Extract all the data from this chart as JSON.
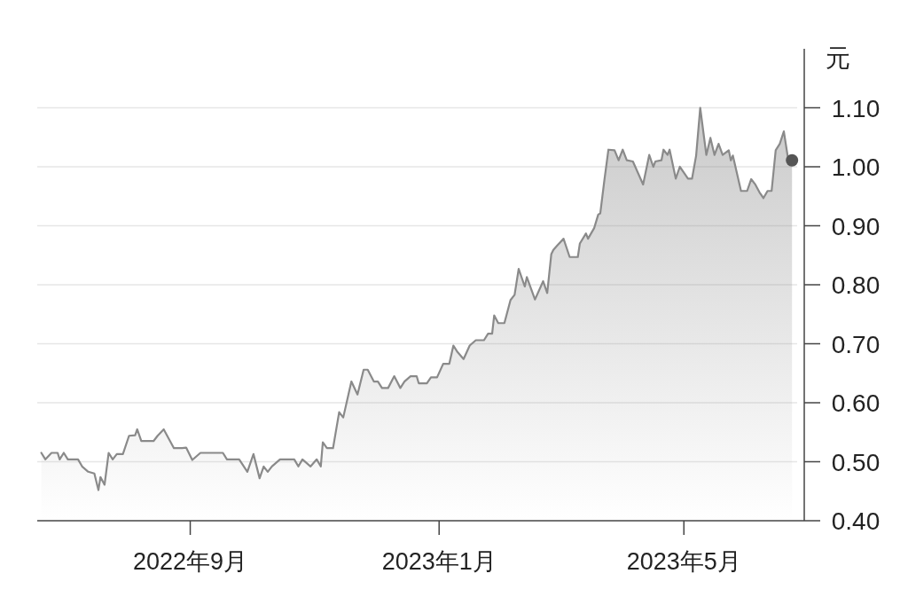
{
  "chart_data": {
    "type": "area",
    "ylabel": "元",
    "xlim": [
      "2022-06-18",
      "2023-06-29"
    ],
    "ylim": [
      0.4,
      1.2
    ],
    "xticks": [
      {
        "value": "2022-09-01",
        "label": "2022年9月"
      },
      {
        "value": "2023-01-01",
        "label": "2023年1月"
      },
      {
        "value": "2023-05-01",
        "label": "2023年5月"
      }
    ],
    "yticks": [
      {
        "value": 0.4,
        "label": "0.40"
      },
      {
        "value": 0.5,
        "label": "0.50"
      },
      {
        "value": 0.6,
        "label": "0.60"
      },
      {
        "value": 0.7,
        "label": "0.70"
      },
      {
        "value": 0.8,
        "label": "0.80"
      },
      {
        "value": 0.9,
        "label": "0.90"
      },
      {
        "value": 1.0,
        "label": "1.00"
      },
      {
        "value": 1.1,
        "label": "1.10"
      }
    ],
    "grid": "y",
    "series": [
      {
        "color": "#8a8a8a",
        "x": [
          "2022-06-20",
          "2022-06-22",
          "2022-06-25",
          "2022-06-28",
          "2022-06-29",
          "2022-07-01",
          "2022-07-03",
          "2022-07-08",
          "2022-07-10",
          "2022-07-13",
          "2022-07-16",
          "2022-07-18",
          "2022-07-19",
          "2022-07-21",
          "2022-07-23",
          "2022-07-25",
          "2022-07-27",
          "2022-07-30",
          "2022-08-02",
          "2022-08-05",
          "2022-08-06",
          "2022-08-08",
          "2022-08-14",
          "2022-08-16",
          "2022-08-19",
          "2022-08-24",
          "2022-08-28",
          "2022-08-30",
          "2022-09-02",
          "2022-09-06",
          "2022-09-17",
          "2022-09-19",
          "2022-09-25",
          "2022-09-29",
          "2022-10-02",
          "2022-10-05",
          "2022-10-07",
          "2022-10-09",
          "2022-10-11",
          "2022-10-15",
          "2022-10-22",
          "2022-10-24",
          "2022-10-26",
          "2022-10-30",
          "2022-11-02",
          "2022-11-04",
          "2022-11-05",
          "2022-11-07",
          "2022-11-10",
          "2022-11-13",
          "2022-11-15",
          "2022-11-19",
          "2022-11-22",
          "2022-11-25",
          "2022-11-27",
          "2022-11-30",
          "2022-12-02",
          "2022-12-04",
          "2022-12-07",
          "2022-12-10",
          "2022-12-13",
          "2022-12-15",
          "2022-12-18",
          "2022-12-21",
          "2022-12-22",
          "2022-12-26",
          "2022-12-28",
          "2022-12-31",
          "2023-01-03",
          "2023-01-06",
          "2023-01-08",
          "2023-01-10",
          "2023-01-13",
          "2023-01-16",
          "2023-01-19",
          "2023-01-23",
          "2023-01-25",
          "2023-01-27",
          "2023-01-28",
          "2023-01-30",
          "2023-02-02",
          "2023-02-05",
          "2023-02-07",
          "2023-02-09",
          "2023-02-12",
          "2023-02-13",
          "2023-02-17",
          "2023-02-21",
          "2023-02-23",
          "2023-02-25",
          "2023-02-26",
          "2023-02-28",
          "2023-03-03",
          "2023-03-06",
          "2023-03-10",
          "2023-03-11",
          "2023-03-14",
          "2023-03-15",
          "2023-03-18",
          "2023-03-20",
          "2023-03-21",
          "2023-03-23",
          "2023-03-25",
          "2023-03-28",
          "2023-03-30",
          "2023-04-01",
          "2023-04-03",
          "2023-04-06",
          "2023-04-11",
          "2023-04-14",
          "2023-04-16",
          "2023-04-17",
          "2023-04-20",
          "2023-04-21",
          "2023-04-23",
          "2023-04-24",
          "2023-04-27",
          "2023-04-29",
          "2023-05-01",
          "2023-05-03",
          "2023-05-05",
          "2023-05-07",
          "2023-05-09",
          "2023-05-12",
          "2023-05-14",
          "2023-05-16",
          "2023-05-18",
          "2023-05-20",
          "2023-05-23",
          "2023-05-24",
          "2023-05-25",
          "2023-05-29",
          "2023-06-01",
          "2023-06-03",
          "2023-06-05",
          "2023-06-07",
          "2023-06-09",
          "2023-06-11",
          "2023-06-13",
          "2023-06-15",
          "2023-06-17",
          "2023-06-19",
          "2023-06-21",
          "2023-06-23"
        ],
        "values": [
          0.515,
          0.504,
          0.515,
          0.515,
          0.504,
          0.515,
          0.504,
          0.504,
          0.492,
          0.483,
          0.48,
          0.452,
          0.474,
          0.461,
          0.515,
          0.504,
          0.513,
          0.513,
          0.544,
          0.545,
          0.555,
          0.535,
          0.535,
          0.544,
          0.555,
          0.523,
          0.523,
          0.524,
          0.503,
          0.515,
          0.515,
          0.504,
          0.504,
          0.483,
          0.513,
          0.472,
          0.492,
          0.483,
          0.492,
          0.504,
          0.504,
          0.492,
          0.504,
          0.492,
          0.504,
          0.492,
          0.533,
          0.523,
          0.523,
          0.584,
          0.575,
          0.636,
          0.614,
          0.656,
          0.656,
          0.636,
          0.636,
          0.625,
          0.625,
          0.645,
          0.625,
          0.636,
          0.645,
          0.645,
          0.633,
          0.633,
          0.643,
          0.643,
          0.666,
          0.666,
          0.697,
          0.686,
          0.674,
          0.697,
          0.706,
          0.706,
          0.717,
          0.717,
          0.748,
          0.735,
          0.735,
          0.774,
          0.783,
          0.827,
          0.797,
          0.813,
          0.775,
          0.806,
          0.786,
          0.852,
          0.859,
          0.867,
          0.878,
          0.847,
          0.847,
          0.87,
          0.887,
          0.878,
          0.896,
          0.919,
          0.921,
          0.977,
          1.029,
          1.028,
          1.011,
          1.029,
          1.011,
          1.009,
          0.97,
          1.02,
          1.0,
          1.009,
          1.011,
          1.029,
          1.02,
          1.029,
          0.98,
          1.0,
          0.99,
          0.98,
          0.98,
          1.019,
          1.1,
          1.02,
          1.049,
          1.02,
          1.039,
          1.02,
          1.028,
          1.011,
          1.019,
          0.959,
          0.959,
          0.979,
          0.97,
          0.957,
          0.947,
          0.959,
          0.959,
          1.028,
          1.039,
          1.06,
          1.015,
          1.011
        ]
      },
      {
        "type": "scatter",
        "color": "#555555",
        "marker": "circle",
        "x": [
          "2023-06-23"
        ],
        "values": [
          1.011
        ]
      }
    ]
  }
}
